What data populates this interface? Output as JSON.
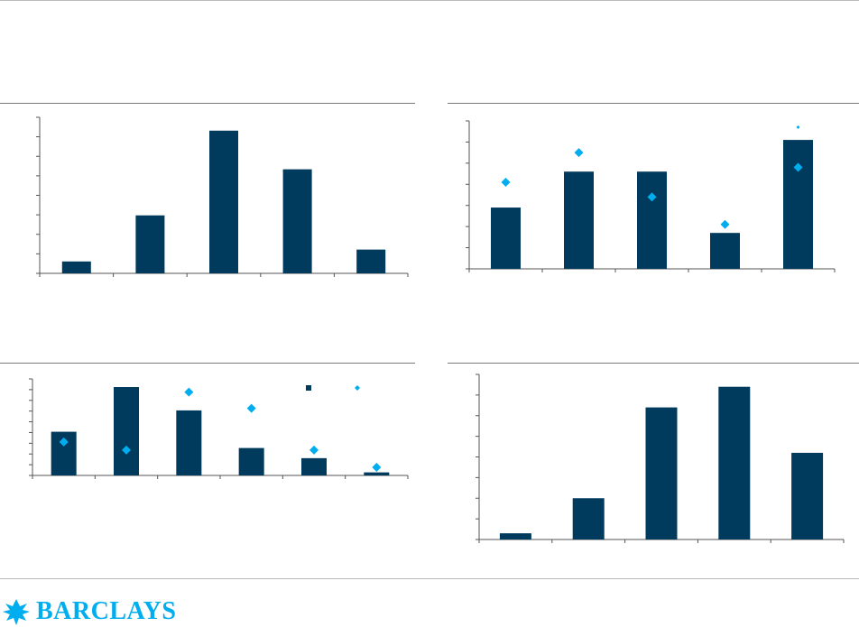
{
  "colors": {
    "bar": "#003a5d",
    "marker": "#00aeef",
    "axis": "#555555",
    "rule": "#b9b9b9",
    "logo": "#00aeef"
  },
  "branding": {
    "logo_text": "BARCLAYS",
    "eagle_icon": "eagle-icon"
  },
  "chart_data": [
    {
      "type": "bar",
      "categories": [
        "",
        "",
        "",
        "",
        ""
      ],
      "series": [
        {
          "type": "bar",
          "values": [
            0.8,
            3.9,
            9.6,
            7.0,
            1.6
          ]
        }
      ],
      "ylim": [
        0,
        10.5
      ],
      "yticks": 8,
      "grid": false,
      "title": "",
      "xlabel": "",
      "ylabel": ""
    },
    {
      "type": "bar",
      "categories": [
        "",
        "",
        "",
        "",
        ""
      ],
      "series": [
        {
          "type": "bar",
          "values": [
            2.9,
            4.6,
            4.6,
            1.7,
            6.1
          ]
        },
        {
          "type": "scatter",
          "values": [
            4.1,
            5.5,
            3.4,
            2.1,
            4.8
          ]
        }
      ],
      "ylim": [
        0,
        7.0
      ],
      "yticks": 7,
      "grid": false,
      "title": "",
      "xlabel": "",
      "ylabel": ""
    },
    {
      "type": "bar",
      "categories": [
        "",
        "",
        "",
        "",
        "",
        ""
      ],
      "series": [
        {
          "type": "bar",
          "values": [
            4.3,
            8.7,
            6.4,
            2.7,
            1.7,
            0.3
          ]
        },
        {
          "type": "scatter",
          "values": [
            3.3,
            2.5,
            8.2,
            6.6,
            2.5,
            0.8
          ]
        }
      ],
      "ylim": [
        0,
        9.5
      ],
      "yticks": 9,
      "grid": false,
      "title": "",
      "xlabel": "",
      "ylabel": "",
      "legend_position": "top-right"
    },
    {
      "type": "bar",
      "categories": [
        "",
        "",
        "",
        "",
        ""
      ],
      "series": [
        {
          "type": "bar",
          "values": [
            0.3,
            2.0,
            6.4,
            7.4,
            4.2
          ]
        }
      ],
      "ylim": [
        0,
        8.0
      ],
      "yticks": 8,
      "grid": false,
      "title": "",
      "xlabel": "",
      "ylabel": ""
    }
  ]
}
